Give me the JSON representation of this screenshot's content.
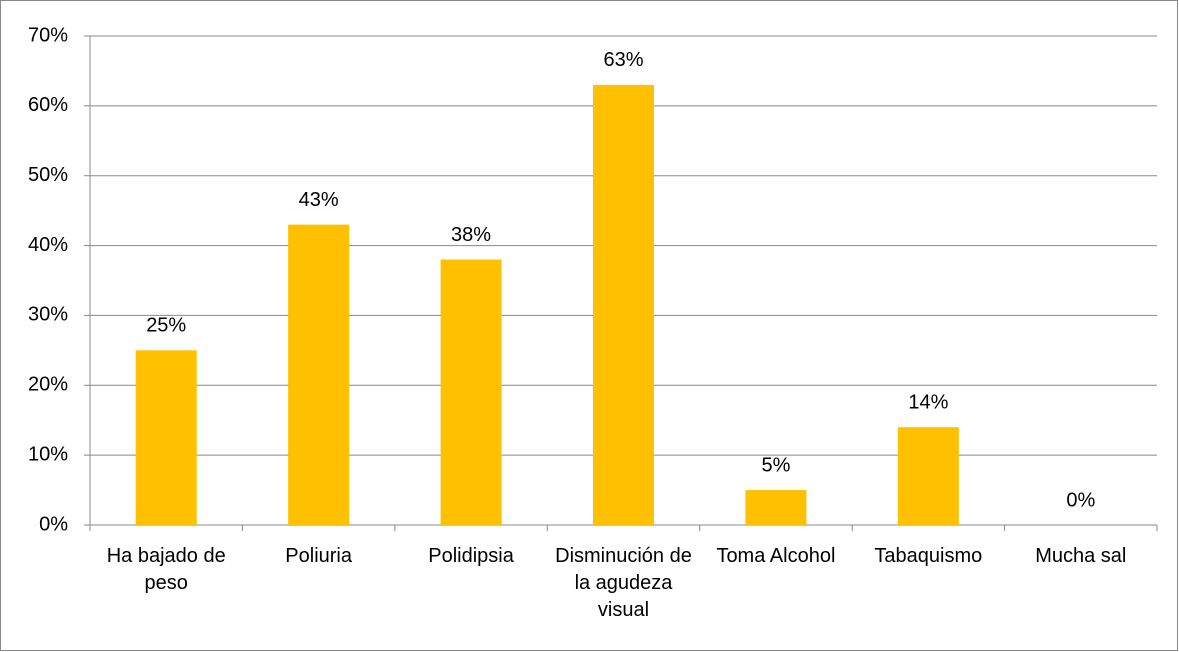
{
  "chart_data": {
    "type": "bar",
    "categories": [
      "Ha bajado de peso",
      "Poliuria",
      "Polidipsia",
      "Disminución de la agudeza visual",
      "Toma Alcohol",
      "Tabaquismo",
      "Mucha sal"
    ],
    "values": [
      25,
      43,
      38,
      63,
      5,
      14,
      0
    ],
    "value_labels": [
      "25%",
      "43%",
      "38%",
      "63%",
      "5%",
      "14%",
      "0%"
    ],
    "color": "#ffc000",
    "ylim": [
      0,
      70
    ],
    "yticks": [
      {
        "value": 0,
        "label": "0%"
      },
      {
        "value": 10,
        "label": "10%"
      },
      {
        "value": 20,
        "label": "20%"
      },
      {
        "value": 30,
        "label": "30%"
      },
      {
        "value": 40,
        "label": "40%"
      },
      {
        "value": 50,
        "label": "50%"
      },
      {
        "value": 60,
        "label": "60%"
      },
      {
        "value": 70,
        "label": "70%"
      }
    ],
    "grid": true
  }
}
